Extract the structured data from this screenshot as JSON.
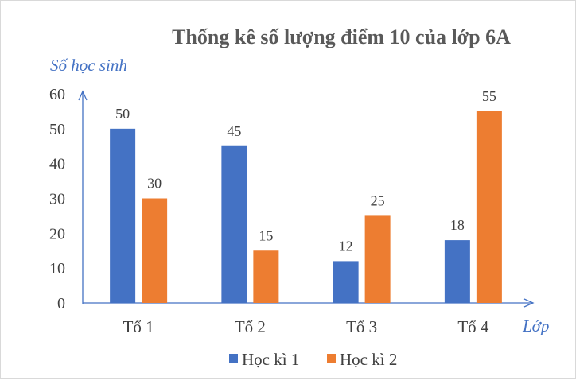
{
  "chart_data": {
    "type": "bar",
    "title": "Thống kê số lượng điểm 10 của lớp 6A",
    "xlabel": "Lớp",
    "ylabel": "Số học sinh",
    "categories": [
      "Tổ 1",
      "Tổ 2",
      "Tổ 3",
      "Tổ 4"
    ],
    "series": [
      {
        "name": "Học kì 1",
        "values": [
          50,
          45,
          12,
          18
        ],
        "color": "#4472c4"
      },
      {
        "name": "Học kì 2",
        "values": [
          30,
          15,
          25,
          55
        ],
        "color": "#ed7d31"
      }
    ],
    "ylim": [
      0,
      60
    ],
    "yticks": [
      "0",
      "10",
      "20",
      "30",
      "40",
      "50",
      "60"
    ],
    "grid": false,
    "legend_position": "bottom",
    "axis_color": "#4472c4"
  }
}
